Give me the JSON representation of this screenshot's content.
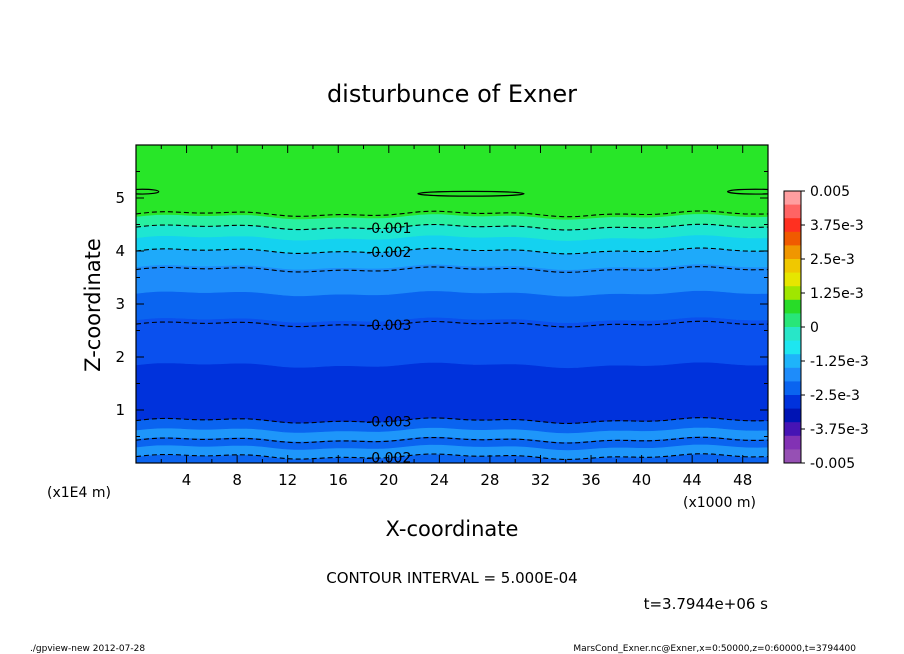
{
  "chart_data": {
    "type": "heatmap",
    "title": "disturbunce of Exner",
    "xlabel": "X-coordinate",
    "ylabel": "Z-coordinate",
    "x_unit": "(x1000 m)",
    "y_unit": "(x1E4 m)",
    "xlim": [
      0,
      50
    ],
    "ylim": [
      0,
      6
    ],
    "x_ticks": [
      "4",
      "8",
      "12",
      "16",
      "20",
      "24",
      "28",
      "32",
      "36",
      "40",
      "44",
      "48"
    ],
    "y_ticks": [
      "1",
      "2",
      "3",
      "4",
      "5"
    ],
    "contour_interval_text": "CONTOUR INTERVAL = 5.000E-04",
    "time_text": "t=3.7944e+06 s",
    "colorbar": {
      "range": [
        -0.005,
        0.005
      ],
      "labels": [
        "0.005",
        "3.75e-3",
        "2.5e-3",
        "1.25e-3",
        "0",
        "-1.25e-3",
        "-2.5e-3",
        "-3.75e-3",
        "-0.005"
      ]
    },
    "bands": [
      {
        "z_bottom": 0.0,
        "z_top": 0.12,
        "color": "#0a64f0"
      },
      {
        "z_bottom": 0.12,
        "z_top": 0.3,
        "color": "#1e96fa"
      },
      {
        "z_bottom": 0.3,
        "z_top": 0.45,
        "color": "#0a64f0"
      },
      {
        "z_bottom": 0.45,
        "z_top": 0.62,
        "color": "#1e96fa"
      },
      {
        "z_bottom": 0.62,
        "z_top": 0.8,
        "color": "#0a64f0"
      },
      {
        "z_bottom": 0.8,
        "z_top": 1.85,
        "color": "#0032dc"
      },
      {
        "z_bottom": 1.85,
        "z_top": 2.7,
        "color": "#0a50ee"
      },
      {
        "z_bottom": 2.7,
        "z_top": 3.2,
        "color": "#0a64f0"
      },
      {
        "z_bottom": 3.2,
        "z_top": 3.7,
        "color": "#1e8cfa"
      },
      {
        "z_bottom": 3.7,
        "z_top": 4.0,
        "color": "#1eaafa"
      },
      {
        "z_bottom": 4.0,
        "z_top": 4.25,
        "color": "#14d2f0"
      },
      {
        "z_bottom": 4.25,
        "z_top": 4.45,
        "color": "#1ee6d2"
      },
      {
        "z_bottom": 4.45,
        "z_top": 4.65,
        "color": "#28f0a0"
      },
      {
        "z_bottom": 4.65,
        "z_top": 6.0,
        "color": "#28e628"
      }
    ],
    "contours": [
      {
        "z": 0.12,
        "style": "dashed",
        "label": "-0.002",
        "label_x": 20
      },
      {
        "z": 0.43,
        "style": "dashed",
        "label": "",
        "label_x": null
      },
      {
        "z": 0.8,
        "style": "dashed",
        "label": "-0.003",
        "label_x": 20
      },
      {
        "z": 2.62,
        "style": "dashed",
        "label": "-0.003",
        "label_x": 20
      },
      {
        "z": 3.65,
        "style": "dashed",
        "label": "",
        "label_x": null
      },
      {
        "z": 4.0,
        "style": "dashed",
        "label": "-0.002",
        "label_x": 20
      },
      {
        "z": 4.45,
        "style": "dashed",
        "label": "-0.001",
        "label_x": 20
      },
      {
        "z": 4.7,
        "style": "dashed",
        "label": "",
        "label_x": null
      }
    ],
    "zero_contours": [
      {
        "x_center": 26.5,
        "z": 5.08,
        "half_width": 4.2
      },
      {
        "x_center": 0.5,
        "z": 5.12,
        "half_width": 1.3
      },
      {
        "x_center": 49.0,
        "z": 5.12,
        "half_width": 2.2
      }
    ]
  },
  "footer": {
    "program": "./gpview-new   2012-07-28",
    "source": "MarsCond_Exner.nc@Exner,x=0:50000,z=0:60000,t=3794400"
  }
}
